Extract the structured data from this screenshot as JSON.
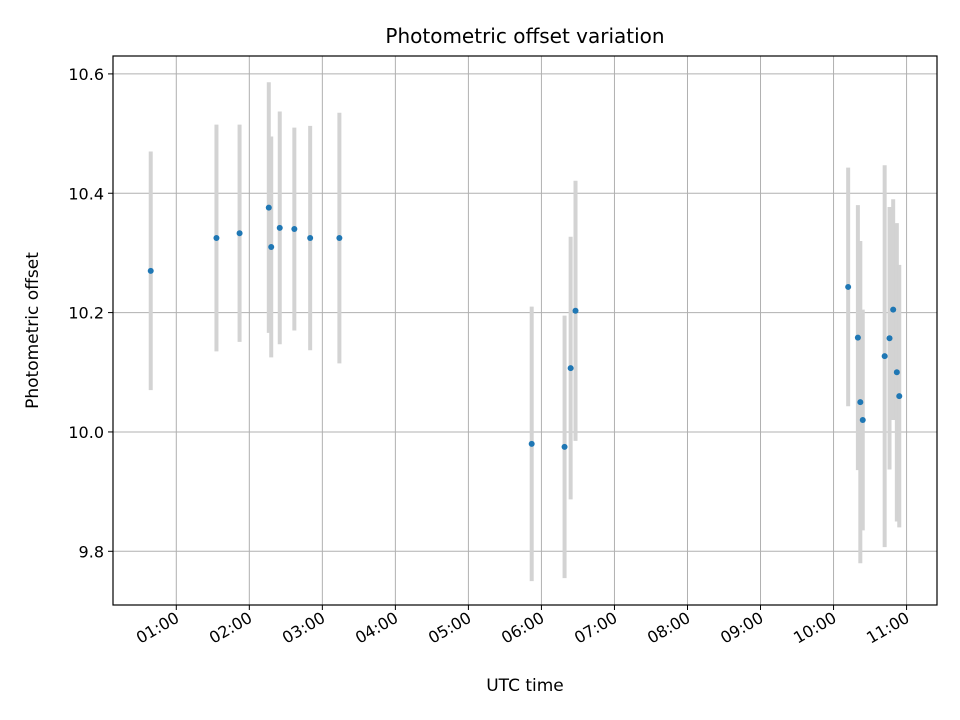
{
  "chart_data": {
    "type": "scatter",
    "title": "Photometric offset variation",
    "xlabel": "UTC time",
    "ylabel": "Photometric offset",
    "x_ticks": [
      "01:00",
      "02:00",
      "03:00",
      "04:00",
      "05:00",
      "06:00",
      "07:00",
      "08:00",
      "09:00",
      "10:00",
      "11:00"
    ],
    "y_ticks": [
      "9.8",
      "10.0",
      "10.2",
      "10.4",
      "10.6"
    ],
    "xlim": [
      "00:08",
      "11:25"
    ],
    "ylim": [
      9.71,
      10.63
    ],
    "grid": true,
    "colors": {
      "point": "#1f77b4",
      "errorbar": "#d3d3d3",
      "grid": "#b0b0b0"
    },
    "points": [
      {
        "x": "00:39",
        "y": 10.27,
        "yerr": 0.2
      },
      {
        "x": "01:33",
        "y": 10.325,
        "yerr": 0.19
      },
      {
        "x": "01:52",
        "y": 10.333,
        "yerr": 0.182
      },
      {
        "x": "02:16",
        "y": 10.376,
        "yerr": 0.21
      },
      {
        "x": "02:18",
        "y": 10.31,
        "yerr": 0.185
      },
      {
        "x": "02:25",
        "y": 10.342,
        "yerr": 0.195
      },
      {
        "x": "02:37",
        "y": 10.34,
        "yerr": 0.17
      },
      {
        "x": "02:50",
        "y": 10.325,
        "yerr": 0.188
      },
      {
        "x": "03:14",
        "y": 10.325,
        "yerr": 0.21
      },
      {
        "x": "05:52",
        "y": 9.98,
        "yerr": 0.23
      },
      {
        "x": "06:19",
        "y": 9.975,
        "yerr": 0.22
      },
      {
        "x": "06:24",
        "y": 10.107,
        "yerr": 0.22
      },
      {
        "x": "06:28",
        "y": 10.203,
        "yerr": 0.218
      },
      {
        "x": "10:12",
        "y": 10.243,
        "yerr": 0.2
      },
      {
        "x": "10:20",
        "y": 10.158,
        "yerr": 0.222
      },
      {
        "x": "10:22",
        "y": 10.05,
        "yerr": 0.27
      },
      {
        "x": "10:24",
        "y": 10.02,
        "yerr": 0.185
      },
      {
        "x": "10:42",
        "y": 10.127,
        "yerr": 0.32
      },
      {
        "x": "10:46",
        "y": 10.157,
        "yerr": 0.22
      },
      {
        "x": "10:49",
        "y": 10.205,
        "yerr": 0.185
      },
      {
        "x": "10:52",
        "y": 10.1,
        "yerr": 0.25
      },
      {
        "x": "10:54",
        "y": 10.06,
        "yerr": 0.22
      }
    ]
  }
}
